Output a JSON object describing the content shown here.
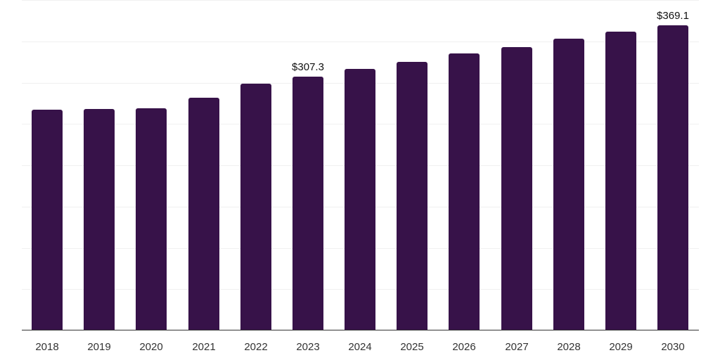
{
  "chart_data": {
    "type": "bar",
    "title": "",
    "xlabel": "",
    "ylabel": "",
    "categories": [
      "2018",
      "2019",
      "2020",
      "2021",
      "2022",
      "2023",
      "2024",
      "2025",
      "2026",
      "2027",
      "2028",
      "2029",
      "2030"
    ],
    "values": [
      267.6,
      268.4,
      269.3,
      282.1,
      298.3,
      307.3,
      317.0,
      325.5,
      334.9,
      343.4,
      352.8,
      361.3,
      369.1
    ],
    "data_labels": [
      {
        "category": "2023",
        "text": "$307.3"
      },
      {
        "category": "2030",
        "text": "$369.1"
      }
    ],
    "ylim": [
      0,
      400
    ],
    "y_gridlines": [
      50,
      100,
      150,
      200,
      250,
      300,
      350,
      400
    ],
    "grid": true,
    "y_axis_labels_visible": false,
    "legend": null,
    "colors": {
      "bar": "#371249",
      "grid": "#f0f0f0",
      "axis": "#333333"
    }
  }
}
